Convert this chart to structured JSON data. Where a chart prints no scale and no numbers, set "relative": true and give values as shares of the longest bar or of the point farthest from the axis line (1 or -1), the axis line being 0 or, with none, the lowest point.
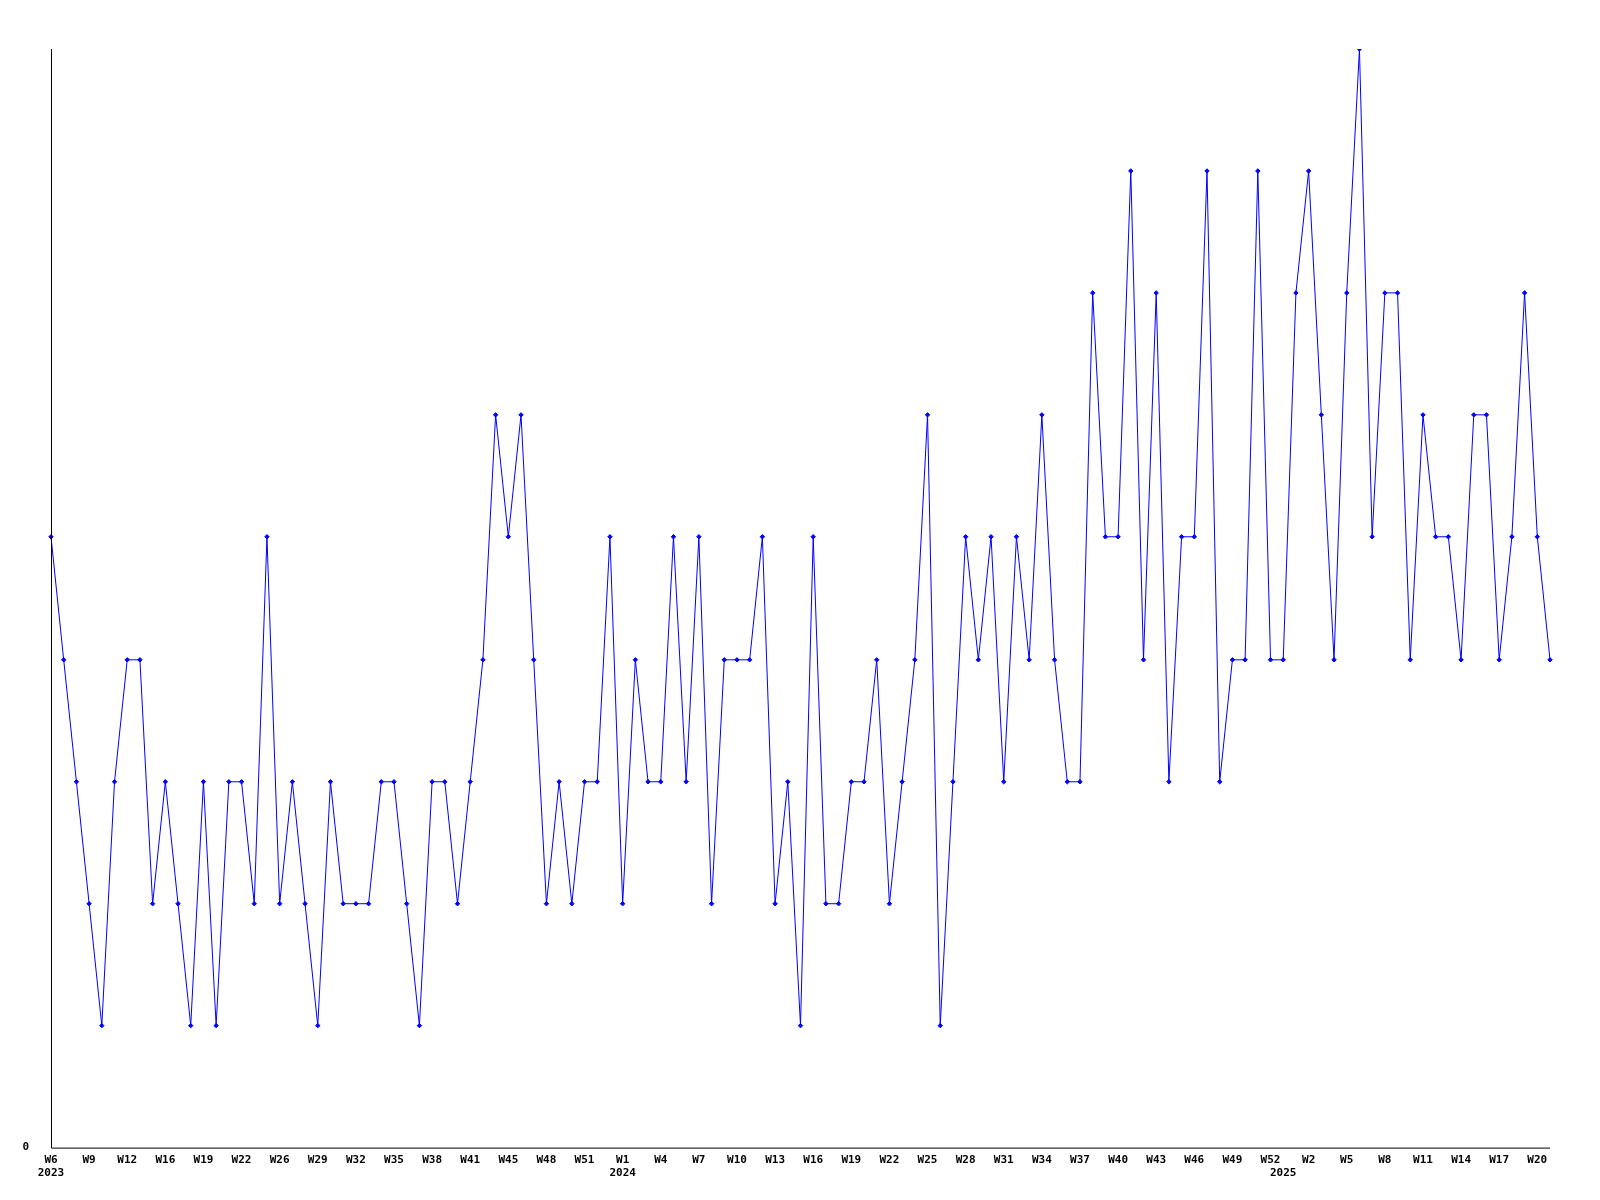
{
  "chart_data": {
    "type": "line",
    "relative": true,
    "marker": "diamond",
    "line_style": "solid",
    "grid": false,
    "legend": false,
    "annotations": [
      "0"
    ],
    "categories": [
      "W6\n2023",
      null,
      null,
      "W9",
      null,
      null,
      "W12",
      null,
      null,
      "W16",
      null,
      null,
      "W19",
      null,
      null,
      "W22",
      null,
      null,
      "W26",
      null,
      null,
      "W29",
      null,
      null,
      "W32",
      null,
      null,
      "W35",
      null,
      null,
      "W38",
      null,
      null,
      "W41",
      null,
      null,
      "W45",
      null,
      null,
      "W48",
      null,
      null,
      "W51",
      null,
      null,
      "W1\n2024",
      null,
      null,
      "W4",
      null,
      null,
      "W7",
      null,
      null,
      "W10",
      null,
      null,
      "W13",
      null,
      null,
      "W16",
      null,
      null,
      "W19",
      null,
      null,
      "W22",
      null,
      null,
      "W25",
      null,
      null,
      "W28",
      null,
      null,
      "W31",
      null,
      null,
      "W34",
      null,
      null,
      "W37",
      null,
      null,
      "W40",
      null,
      null,
      "W43",
      null,
      null,
      "W46",
      null,
      null,
      "W49",
      null,
      null,
      "W52",
      "\n2025",
      null,
      "W2",
      null,
      null,
      "W5",
      null,
      null,
      "W8",
      null,
      null,
      "W11",
      null,
      null,
      "W14",
      null,
      null,
      "W17",
      null,
      null,
      "W20",
      null
    ],
    "series": [
      {
        "color": "#0000ff",
        "values": [
          0.556,
          0.444,
          0.333,
          0.222,
          0.111,
          0.333,
          0.444,
          0.444,
          0.222,
          0.333,
          0.222,
          0.111,
          0.333,
          0.111,
          0.333,
          0.333,
          0.222,
          0.556,
          0.222,
          0.333,
          0.222,
          0.111,
          0.333,
          0.222,
          0.222,
          0.222,
          0.333,
          0.333,
          0.222,
          0.111,
          0.333,
          0.333,
          0.222,
          0.333,
          0.444,
          0.667,
          0.556,
          0.667,
          0.444,
          0.222,
          0.333,
          0.222,
          0.333,
          0.333,
          0.556,
          0.222,
          0.444,
          0.333,
          0.333,
          0.556,
          0.333,
          0.556,
          0.222,
          0.444,
          0.444,
          0.444,
          0.556,
          0.222,
          0.333,
          0.111,
          0.556,
          0.222,
          0.222,
          0.333,
          0.333,
          0.444,
          0.222,
          0.333,
          0.444,
          0.667,
          0.111,
          0.333,
          0.556,
          0.444,
          0.556,
          0.333,
          0.556,
          0.444,
          0.667,
          0.444,
          0.333,
          0.333,
          0.778,
          0.556,
          0.556,
          0.889,
          0.444,
          0.778,
          0.333,
          0.556,
          0.556,
          0.889,
          0.333,
          0.444,
          0.444,
          0.889,
          0.444,
          0.444,
          0.778,
          0.889,
          0.667,
          0.444,
          0.778,
          1,
          0.556,
          0.778,
          0.778,
          0.444,
          0.667,
          0.556,
          0.556,
          0.444,
          0.667,
          0.667,
          0.444,
          0.556,
          0.778,
          0.556,
          0.444
        ]
      }
    ]
  }
}
